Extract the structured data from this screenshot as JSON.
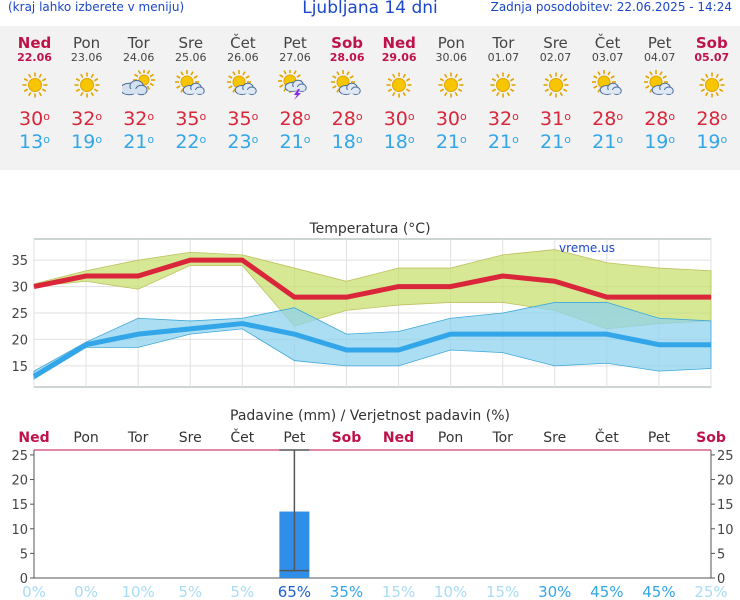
{
  "header": {
    "menu_hint": "(kraj lahko izberete v meniju)",
    "title": "Ljubljana 14 dni",
    "updated": "Zadnja posodobitev: 22.06.2025 - 14:24"
  },
  "days": [
    {
      "name": "Ned",
      "date": "22.06",
      "weekend": true,
      "icon": "sun-icon",
      "tmax": "30",
      "tmin": "13"
    },
    {
      "name": "Pon",
      "date": "23.06",
      "weekend": false,
      "icon": "sun-icon",
      "tmax": "32",
      "tmin": "19"
    },
    {
      "name": "Tor",
      "date": "24.06",
      "weekend": false,
      "icon": "cloudy-icon",
      "tmax": "32",
      "tmin": "21"
    },
    {
      "name": "Sre",
      "date": "25.06",
      "weekend": false,
      "icon": "sun-cloud-icon",
      "tmax": "35",
      "tmin": "22"
    },
    {
      "name": "Čet",
      "date": "26.06",
      "weekend": false,
      "icon": "sun-cloud-icon",
      "tmax": "35",
      "tmin": "23"
    },
    {
      "name": "Pet",
      "date": "27.06",
      "weekend": false,
      "icon": "thunderstorm-icon",
      "tmax": "28",
      "tmin": "21"
    },
    {
      "name": "Sob",
      "date": "28.06",
      "weekend": true,
      "icon": "sun-cloud-icon",
      "tmax": "28",
      "tmin": "18"
    },
    {
      "name": "Ned",
      "date": "29.06",
      "weekend": true,
      "icon": "sun-icon",
      "tmax": "30",
      "tmin": "18"
    },
    {
      "name": "Pon",
      "date": "30.06",
      "weekend": false,
      "icon": "sun-icon",
      "tmax": "30",
      "tmin": "21"
    },
    {
      "name": "Tor",
      "date": "01.07",
      "weekend": false,
      "icon": "sun-icon",
      "tmax": "32",
      "tmin": "21"
    },
    {
      "name": "Sre",
      "date": "02.07",
      "weekend": false,
      "icon": "sun-icon",
      "tmax": "31",
      "tmin": "21"
    },
    {
      "name": "Čet",
      "date": "03.07",
      "weekend": false,
      "icon": "sun-cloud-icon",
      "tmax": "28",
      "tmin": "21"
    },
    {
      "name": "Pet",
      "date": "04.07",
      "weekend": false,
      "icon": "sun-cloud-icon",
      "tmax": "28",
      "tmin": "19"
    },
    {
      "name": "Sob",
      "date": "05.07",
      "weekend": true,
      "icon": "sun-icon",
      "tmax": "28",
      "tmin": "19"
    }
  ],
  "colors": {
    "weekend": "#c0124a",
    "tmax": "#d9263a",
    "tmin": "#32a6e8",
    "sun": "#f7c600",
    "bar": "#2f8fe8"
  },
  "chart_data": [
    {
      "type": "line",
      "title": "Temperatura (°C)",
      "watermark": "vreme.us",
      "ylim": [
        11,
        39
      ],
      "yticks": [
        15,
        20,
        25,
        30,
        35
      ],
      "grid": true,
      "x": [
        1,
        2,
        3,
        4,
        5,
        6,
        7,
        8,
        9,
        10,
        11,
        12,
        13,
        14
      ],
      "series": [
        {
          "values": [
            30,
            32,
            32,
            35,
            35,
            28,
            28,
            30,
            30,
            32,
            31,
            28,
            28,
            28
          ]
        },
        {
          "values": [
            13,
            19,
            21,
            22,
            23,
            21,
            18,
            18,
            21,
            21,
            21,
            21,
            19,
            19
          ]
        }
      ],
      "bands": [
        {
          "lower": [
            30,
            31,
            29.5,
            34,
            34,
            22.5,
            25.5,
            26.5,
            27,
            27,
            25.5,
            22,
            23,
            23.5
          ],
          "upper": [
            30.5,
            33,
            35,
            36.5,
            36,
            33.5,
            31,
            33.5,
            33.5,
            36,
            37,
            34.5,
            33.5,
            33
          ]
        },
        {
          "lower": [
            12.5,
            18.5,
            18.5,
            21,
            22,
            16,
            15,
            15,
            18,
            17.5,
            15,
            15.5,
            14,
            14.5
          ],
          "upper": [
            14,
            19.5,
            24,
            23.5,
            24,
            26,
            21,
            21.5,
            24,
            25,
            27,
            27,
            24,
            23.5
          ]
        }
      ]
    },
    {
      "type": "bar",
      "title": "Padavine (mm) / Verjetnost padavin (%)",
      "categories": [
        "Ned",
        "Pon",
        "Tor",
        "Sre",
        "Čet",
        "Pet",
        "Sob",
        "Ned",
        "Pon",
        "Tor",
        "Sre",
        "Čet",
        "Pet",
        "Sob"
      ],
      "values": [
        0,
        0,
        0,
        0,
        0,
        13.5,
        0,
        0,
        0,
        0,
        0,
        0,
        0,
        0
      ],
      "error_max": [
        0,
        0,
        0,
        0,
        0,
        26,
        0,
        0,
        0,
        0,
        0,
        0,
        0,
        0
      ],
      "error_min": [
        0,
        0,
        0,
        0,
        0,
        1.5,
        0,
        0,
        0,
        0,
        0,
        0,
        0,
        0
      ],
      "probability": [
        "0%",
        "0%",
        "10%",
        "5%",
        "5%",
        "65%",
        "35%",
        "15%",
        "10%",
        "15%",
        "30%",
        "45%",
        "45%",
        "25%"
      ],
      "ylim": [
        0,
        26
      ],
      "yticks": [
        0,
        5,
        10,
        15,
        20,
        25
      ]
    }
  ]
}
